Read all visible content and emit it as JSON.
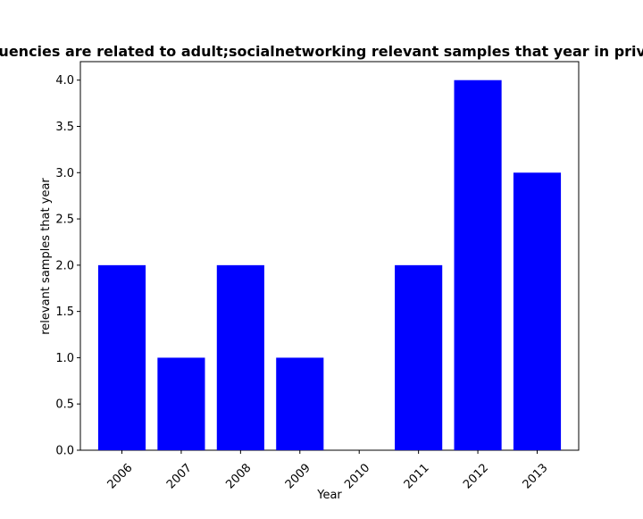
{
  "chart_data": {
    "type": "bar",
    "title": "Frequencies are related to adult;socialnetworking relevant samples that year in privacy",
    "xlabel": "Year",
    "ylabel": "relevant samples that year",
    "categories": [
      "2006",
      "2007",
      "2008",
      "2009",
      "2010",
      "2011",
      "2012",
      "2013"
    ],
    "values": [
      2,
      1,
      2,
      1,
      0,
      2,
      4,
      3
    ],
    "ylim": [
      0,
      4.2
    ],
    "yticks": [
      "0.0",
      "0.5",
      "1.0",
      "1.5",
      "2.0",
      "2.5",
      "3.0",
      "3.5",
      "4.0"
    ],
    "bar_color": "#0000ff",
    "grid": false
  }
}
